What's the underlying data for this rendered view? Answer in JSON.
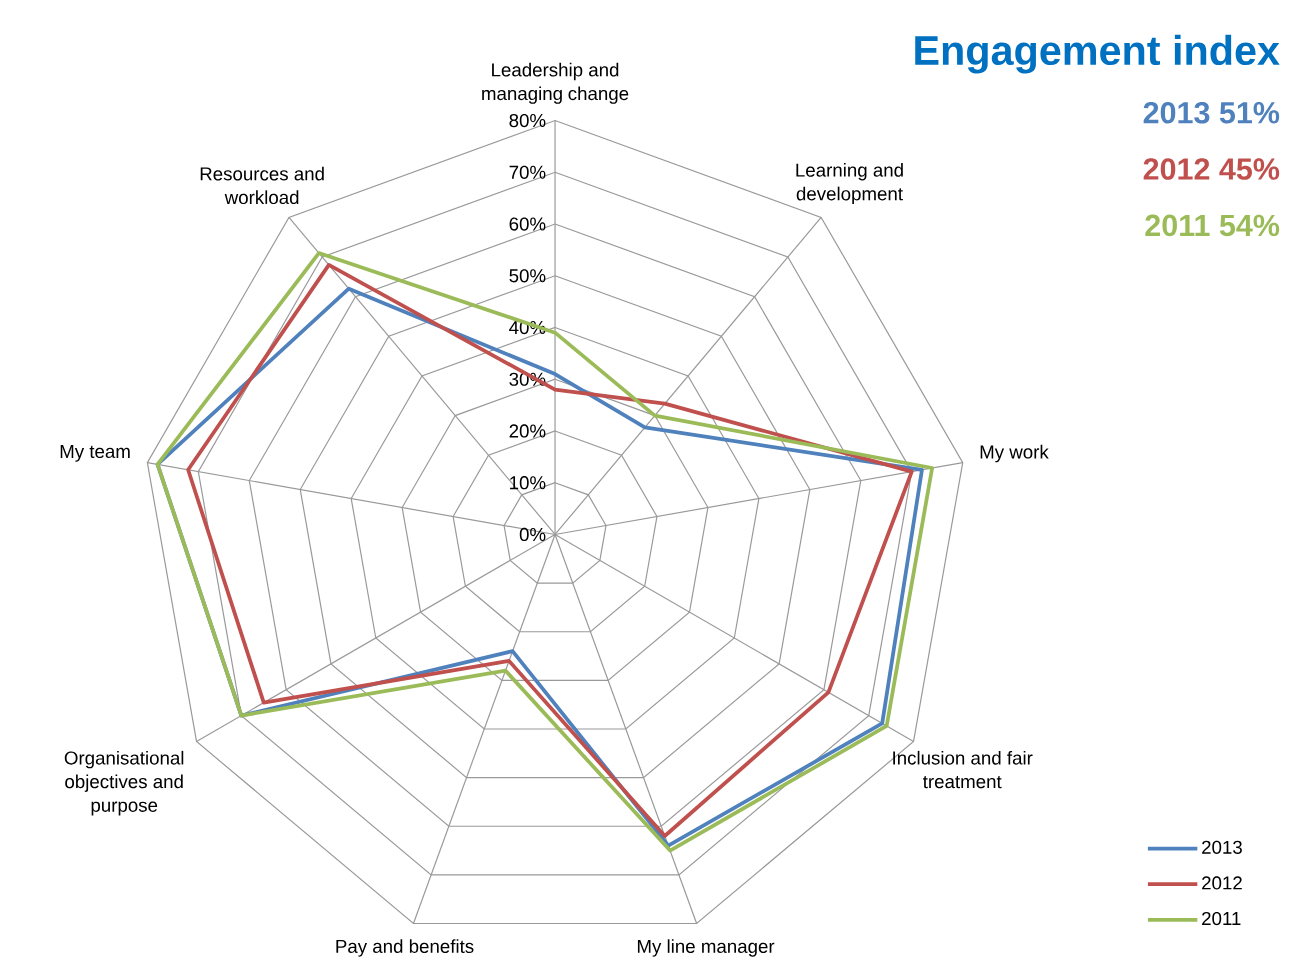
{
  "chart_data": {
    "type": "radar",
    "title": "Engagement index",
    "annotations": [
      "2013 51%",
      "2012 45%",
      "2011 54%"
    ],
    "categories": [
      "Leadership and managing change",
      "Learning and development",
      "My work",
      "Inclusion and fair treatment",
      "My line manager",
      "Pay and benefits",
      "Organisational objectives and purpose",
      "My team",
      "Resources and workload"
    ],
    "series": [
      {
        "name": "2013",
        "color": "#4f81bd",
        "values": [
          31,
          27,
          72,
          73,
          64,
          24,
          70,
          78,
          62
        ]
      },
      {
        "name": "2012",
        "color": "#c0504d",
        "values": [
          28,
          33,
          70,
          61,
          62,
          26,
          65,
          72,
          68
        ]
      },
      {
        "name": "2011",
        "color": "#9bbb59",
        "values": [
          39,
          30,
          74,
          74,
          65,
          28,
          70,
          78,
          71
        ]
      }
    ],
    "ylim": [
      0,
      80
    ],
    "yticks": [
      {
        "value": 0,
        "label": "0%"
      },
      {
        "value": 10,
        "label": "10%"
      },
      {
        "value": 20,
        "label": "20%"
      },
      {
        "value": 30,
        "label": "30%"
      },
      {
        "value": 40,
        "label": "40%"
      },
      {
        "value": 50,
        "label": "50%"
      },
      {
        "value": 60,
        "label": "60%"
      },
      {
        "value": 70,
        "label": "70%"
      },
      {
        "value": 80,
        "label": "80%"
      }
    ],
    "grid": true,
    "legend": "bottom right"
  }
}
